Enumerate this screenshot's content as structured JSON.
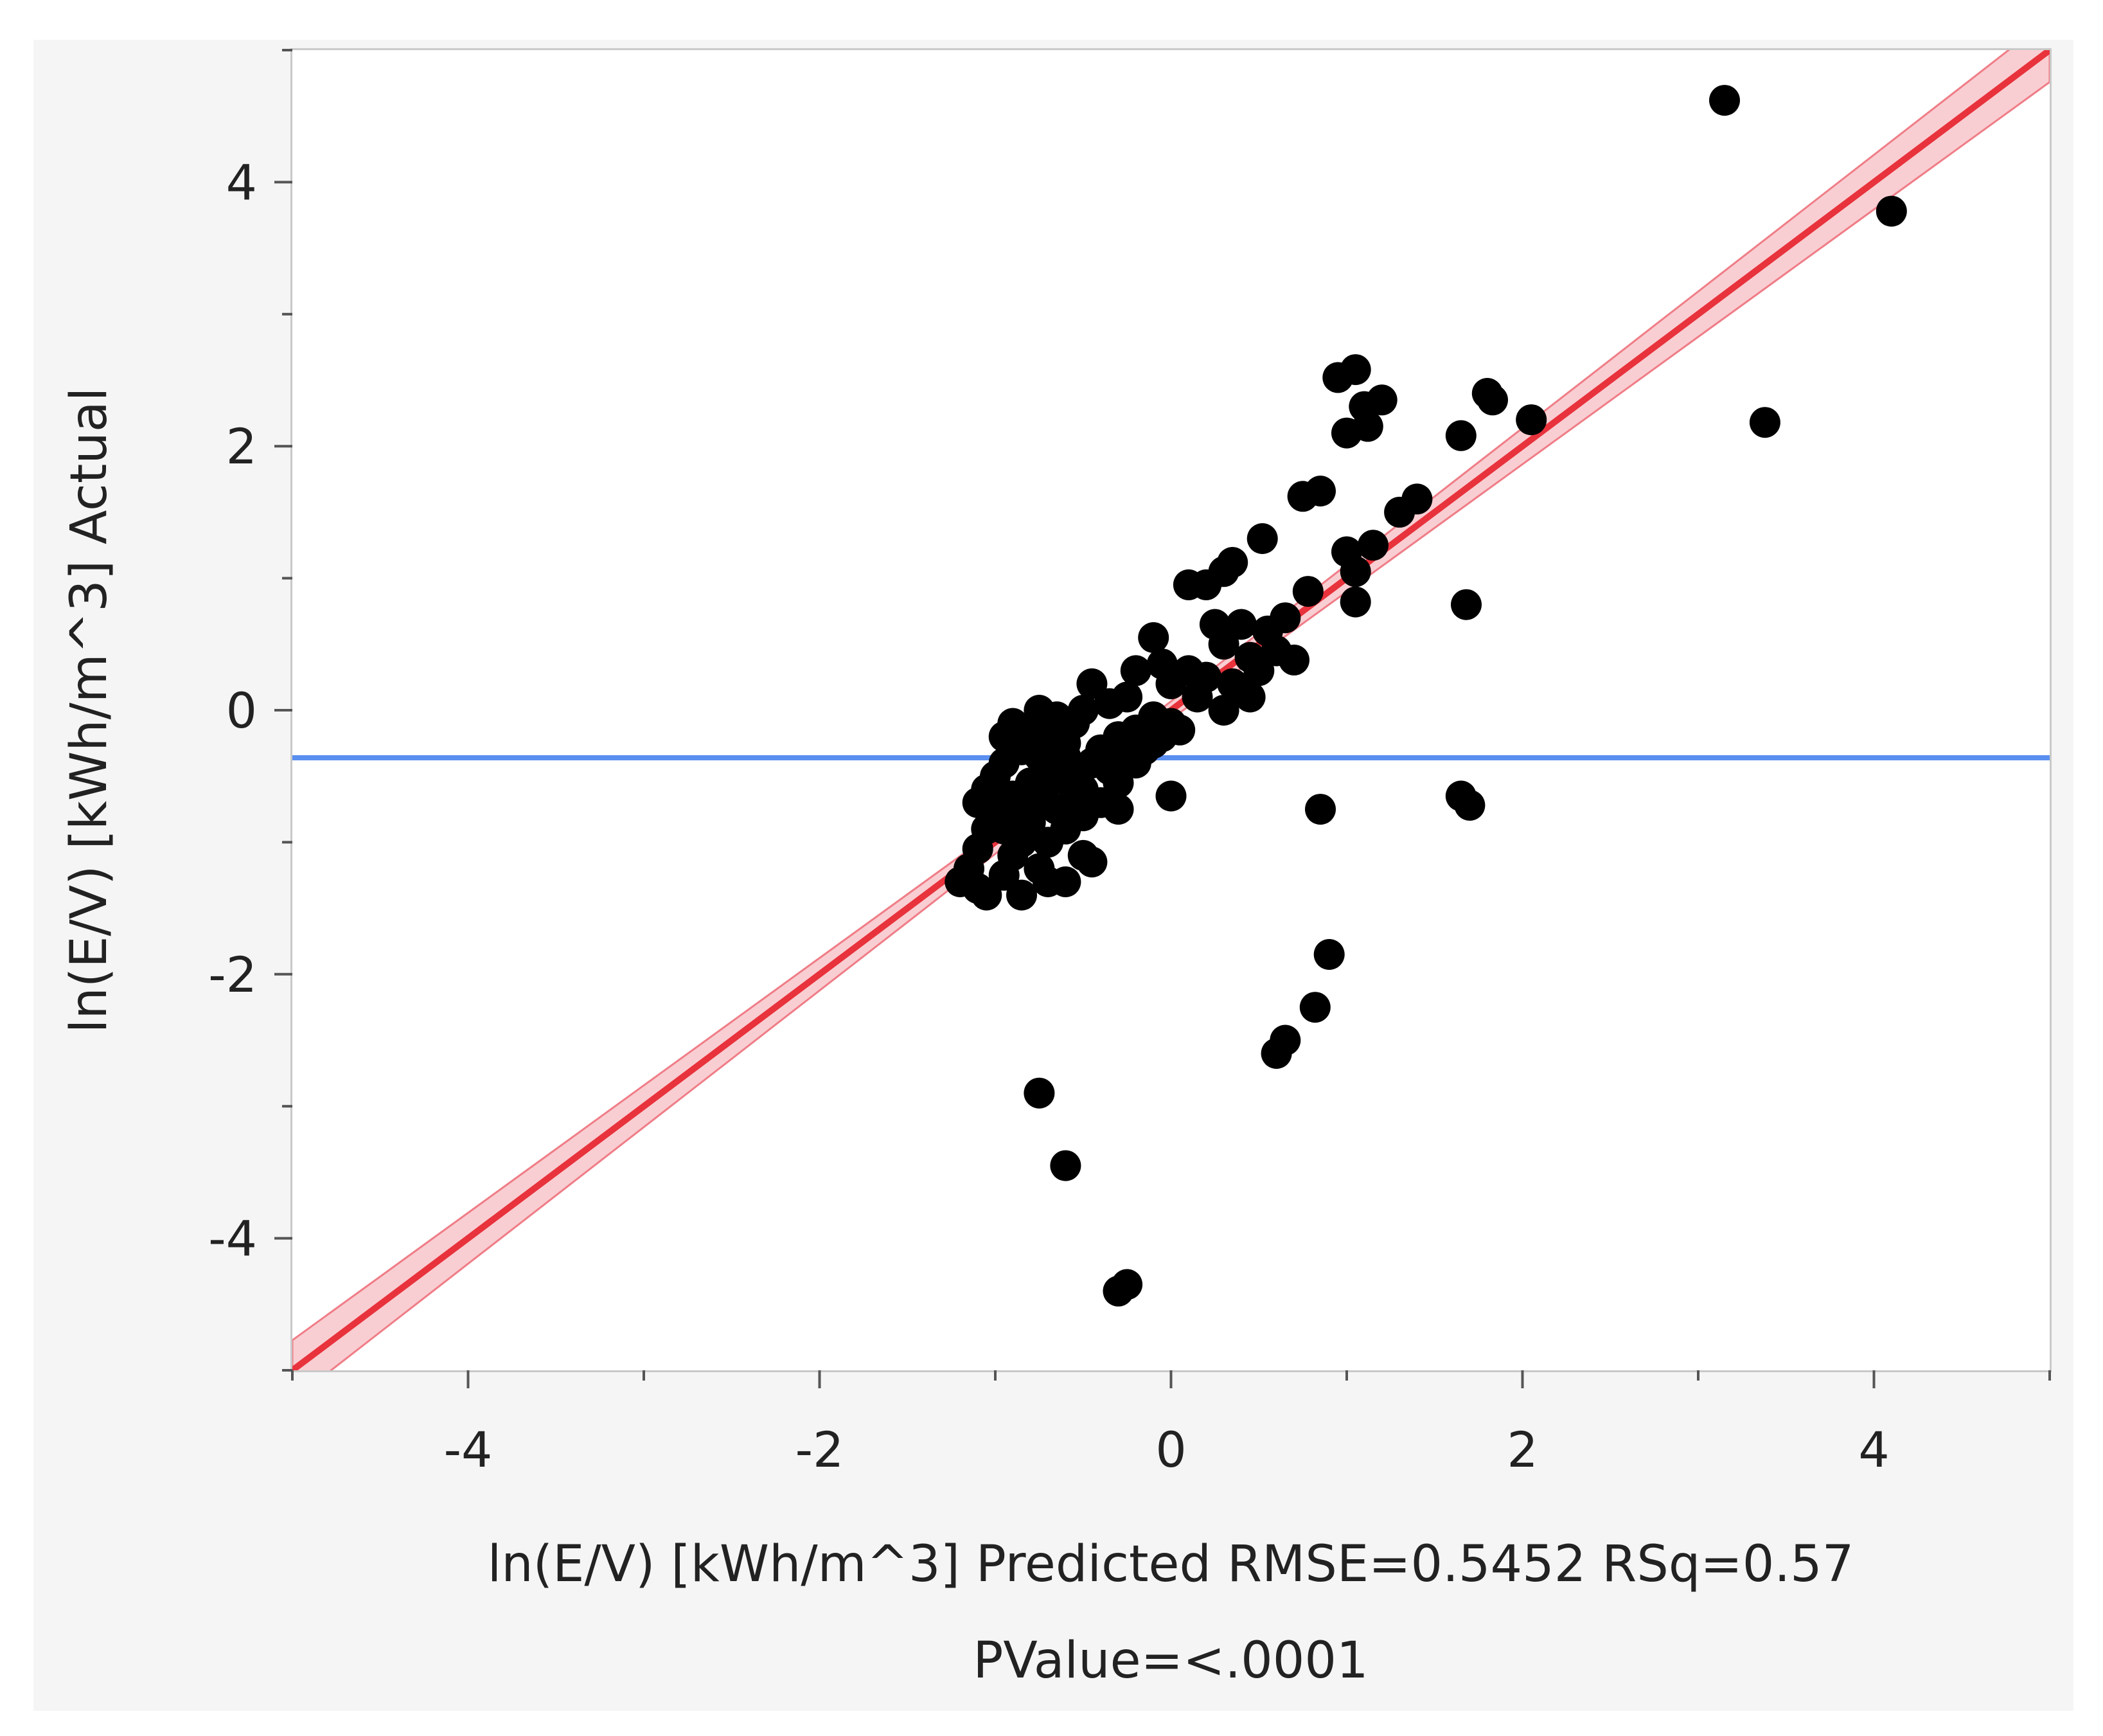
{
  "chart_data": {
    "type": "scatter",
    "xlabel": "ln(E/V) [kWh/m^3] Predicted RMSE=0.5452 RSq=0.57",
    "xlabel_line2": "PValue=<.0001",
    "ylabel": "ln(E/V) [kWh/m^3] Actual",
    "xlim": [
      -5,
      5
    ],
    "ylim": [
      -5,
      5
    ],
    "x_ticks": [
      "-4",
      "-2",
      "0",
      "2",
      "4"
    ],
    "y_ticks": [
      "4",
      "2",
      "0",
      "-2",
      "-4"
    ],
    "x_tick_values": [
      -4,
      -2,
      0,
      2,
      4
    ],
    "y_tick_values": [
      4,
      2,
      0,
      -2,
      -4
    ],
    "grid": false,
    "fit_line": {
      "slope": 1,
      "intercept": 0,
      "color": "#e8323c",
      "band_color": "#f4a6ad"
    },
    "mean_line": {
      "y": -0.36,
      "color": "#5a8ff0"
    },
    "point_color": "#000000",
    "points": [
      [
        3.15,
        4.62
      ],
      [
        4.1,
        3.78
      ],
      [
        3.38,
        2.18
      ],
      [
        0.95,
        2.52
      ],
      [
        1.05,
        2.58
      ],
      [
        1.1,
        2.3
      ],
      [
        1.2,
        2.35
      ],
      [
        1.0,
        2.1
      ],
      [
        1.12,
        2.15
      ],
      [
        1.65,
        2.08
      ],
      [
        1.8,
        2.4
      ],
      [
        1.83,
        2.35
      ],
      [
        2.05,
        2.2
      ],
      [
        0.75,
        1.62
      ],
      [
        0.85,
        1.66
      ],
      [
        0.52,
        1.3
      ],
      [
        0.35,
        1.12
      ],
      [
        0.3,
        1.05
      ],
      [
        0.1,
        0.95
      ],
      [
        0.2,
        0.95
      ],
      [
        1.0,
        1.2
      ],
      [
        1.05,
        1.05
      ],
      [
        1.15,
        1.25
      ],
      [
        1.3,
        1.5
      ],
      [
        1.4,
        1.6
      ],
      [
        1.05,
        0.82
      ],
      [
        1.68,
        0.8
      ],
      [
        0.78,
        0.9
      ],
      [
        0.65,
        0.7
      ],
      [
        0.55,
        0.6
      ],
      [
        0.4,
        0.65
      ],
      [
        0.25,
        0.65
      ],
      [
        0.3,
        0.5
      ],
      [
        0.45,
        0.4
      ],
      [
        0.6,
        0.45
      ],
      [
        0.7,
        0.38
      ],
      [
        0.5,
        0.3
      ],
      [
        0.35,
        0.2
      ],
      [
        0.2,
        0.25
      ],
      [
        0.1,
        0.3
      ],
      [
        -0.1,
        0.55
      ],
      [
        -0.05,
        0.35
      ],
      [
        0.0,
        0.2
      ],
      [
        -0.2,
        0.3
      ],
      [
        -0.25,
        0.1
      ],
      [
        0.15,
        0.1
      ],
      [
        0.3,
        0.0
      ],
      [
        0.4,
        0.15
      ],
      [
        0.45,
        0.1
      ],
      [
        0.0,
        -0.1
      ],
      [
        -0.1,
        -0.05
      ],
      [
        -0.2,
        -0.15
      ],
      [
        -0.3,
        -0.2
      ],
      [
        -0.35,
        0.05
      ],
      [
        -0.45,
        0.2
      ],
      [
        -0.5,
        0.0
      ],
      [
        -0.55,
        -0.1
      ],
      [
        -0.6,
        -0.25
      ],
      [
        -0.65,
        -0.05
      ],
      [
        -0.7,
        -0.2
      ],
      [
        -0.75,
        0.0
      ],
      [
        -0.8,
        -0.15
      ],
      [
        -0.85,
        -0.3
      ],
      [
        -0.9,
        -0.1
      ],
      [
        -0.95,
        -0.4
      ],
      [
        -1.0,
        -0.5
      ],
      [
        -1.05,
        -0.6
      ],
      [
        -1.1,
        -0.7
      ],
      [
        -1.05,
        -0.9
      ],
      [
        -1.1,
        -1.05
      ],
      [
        -1.15,
        -1.2
      ],
      [
        -1.2,
        -1.3
      ],
      [
        -1.1,
        -1.35
      ],
      [
        -1.05,
        -1.4
      ],
      [
        -0.95,
        -1.25
      ],
      [
        -0.9,
        -1.1
      ],
      [
        -0.85,
        -1.0
      ],
      [
        -0.8,
        -0.85
      ],
      [
        -0.75,
        -0.7
      ],
      [
        -0.7,
        -0.55
      ],
      [
        -0.65,
        -0.45
      ],
      [
        -0.6,
        -0.35
      ],
      [
        -0.55,
        -0.5
      ],
      [
        -0.5,
        -0.6
      ],
      [
        -0.45,
        -0.4
      ],
      [
        -0.4,
        -0.3
      ],
      [
        -0.35,
        -0.45
      ],
      [
        -0.3,
        -0.55
      ],
      [
        -0.25,
        -0.35
      ],
      [
        -0.2,
        -0.4
      ],
      [
        -0.15,
        -0.3
      ],
      [
        -0.1,
        -0.25
      ],
      [
        -0.05,
        -0.2
      ],
      [
        0.05,
        -0.15
      ],
      [
        -0.4,
        -0.7
      ],
      [
        -0.3,
        -0.75
      ],
      [
        -0.5,
        -0.8
      ],
      [
        -0.6,
        -0.9
      ],
      [
        -0.7,
        -1.0
      ],
      [
        -0.75,
        -1.2
      ],
      [
        -0.7,
        -1.3
      ],
      [
        -0.6,
        -1.3
      ],
      [
        -0.5,
        -1.1
      ],
      [
        -0.45,
        -1.15
      ],
      [
        -0.85,
        -1.4
      ],
      [
        -0.95,
        -0.2
      ],
      [
        -1.0,
        -0.75
      ],
      [
        -0.9,
        -0.65
      ],
      [
        -0.8,
        -0.55
      ],
      [
        -0.95,
        -0.9
      ],
      [
        -0.85,
        -0.8
      ],
      [
        -0.75,
        -0.35
      ],
      [
        -0.65,
        -0.75
      ],
      [
        -0.55,
        -0.65
      ],
      [
        0.0,
        -0.65
      ],
      [
        0.85,
        -0.75
      ],
      [
        1.65,
        -0.65
      ],
      [
        1.7,
        -0.72
      ],
      [
        0.9,
        -1.85
      ],
      [
        0.82,
        -2.25
      ],
      [
        0.65,
        -2.5
      ],
      [
        0.6,
        -2.6
      ],
      [
        -0.75,
        -2.9
      ],
      [
        -0.6,
        -3.45
      ],
      [
        -0.3,
        -4.4
      ],
      [
        -0.25,
        -4.35
      ]
    ]
  }
}
